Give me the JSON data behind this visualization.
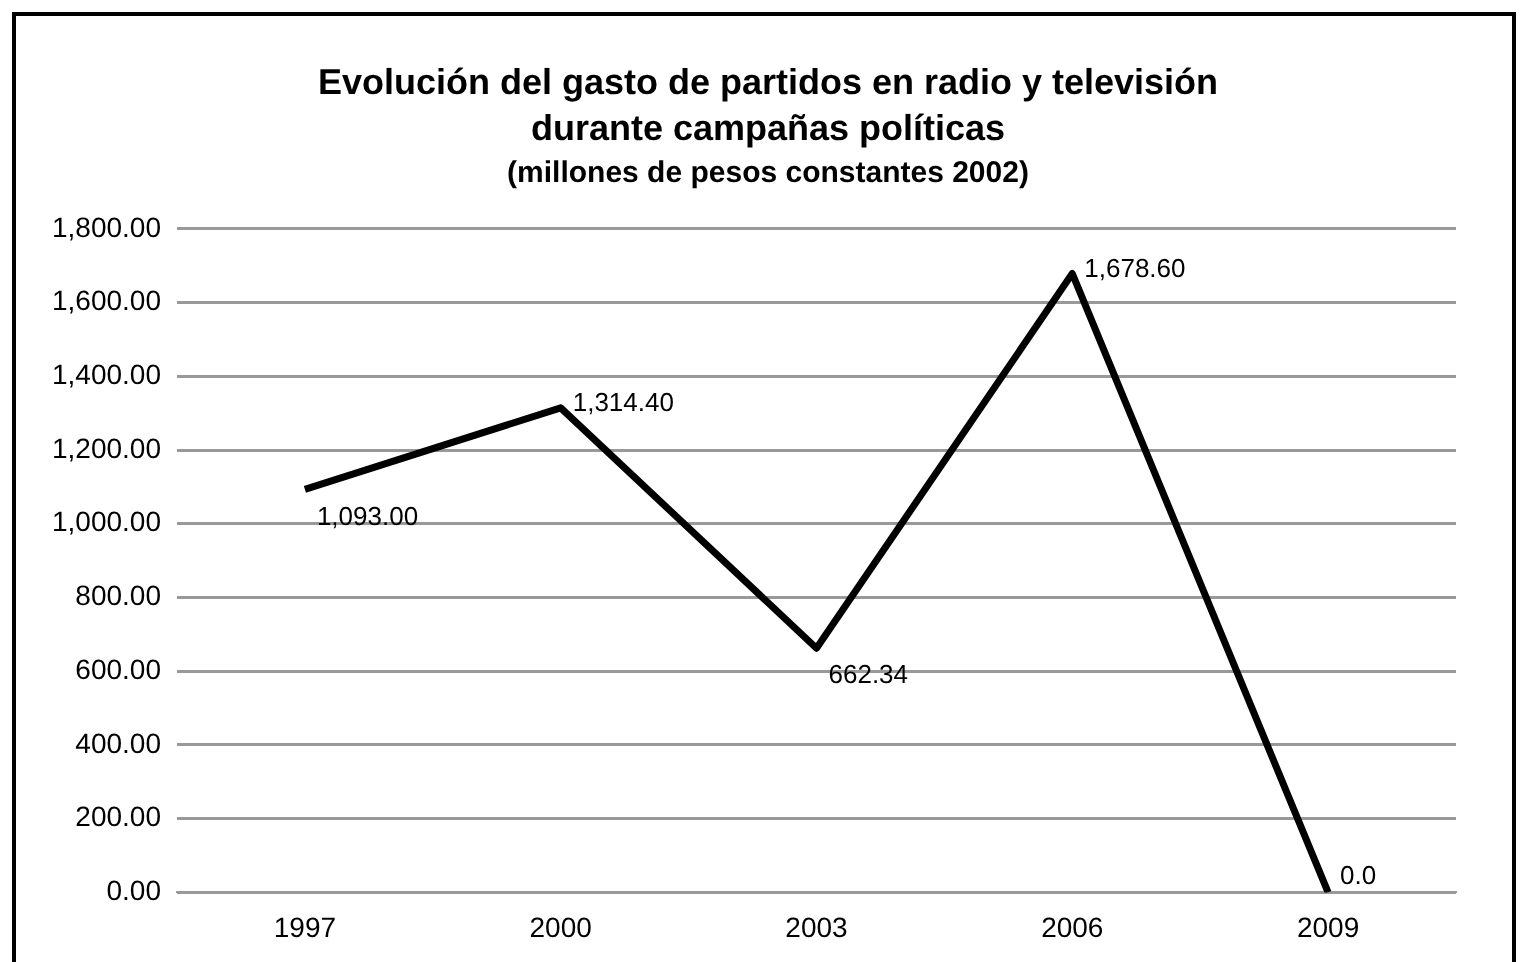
{
  "chart_data": {
    "type": "line",
    "title": "Evolución del gasto de partidos en radio y televisión durante campañas políticas",
    "subtitle": "(millones de pesos constantes 2002)",
    "categories": [
      "1997",
      "2000",
      "2003",
      "2006",
      "2009"
    ],
    "series": [
      {
        "color": "#000000",
        "values": [
          1093.0,
          1314.4,
          662.34,
          1678.6,
          0.0
        ],
        "value_labels": [
          "1,093.00",
          "1,314.40",
          "662.34",
          "1,678.60",
          "0.0"
        ]
      }
    ],
    "ylim": [
      0,
      1800
    ],
    "yticks": [
      {
        "value": 0,
        "label": "0.00"
      },
      {
        "value": 200,
        "label": "200.00"
      },
      {
        "value": 400,
        "label": "400.00"
      },
      {
        "value": 600,
        "label": "600.00"
      },
      {
        "value": 800,
        "label": "800.00"
      },
      {
        "value": 1000,
        "label": "1,000.00"
      },
      {
        "value": 1200,
        "label": "1,200.00"
      },
      {
        "value": 1400,
        "label": "1,400.00"
      },
      {
        "value": 1600,
        "label": "1,600.00"
      },
      {
        "value": 1800,
        "label": "1,800.00"
      }
    ],
    "grid": "y",
    "marker": "none",
    "line_style": "solid",
    "legend": false
  }
}
